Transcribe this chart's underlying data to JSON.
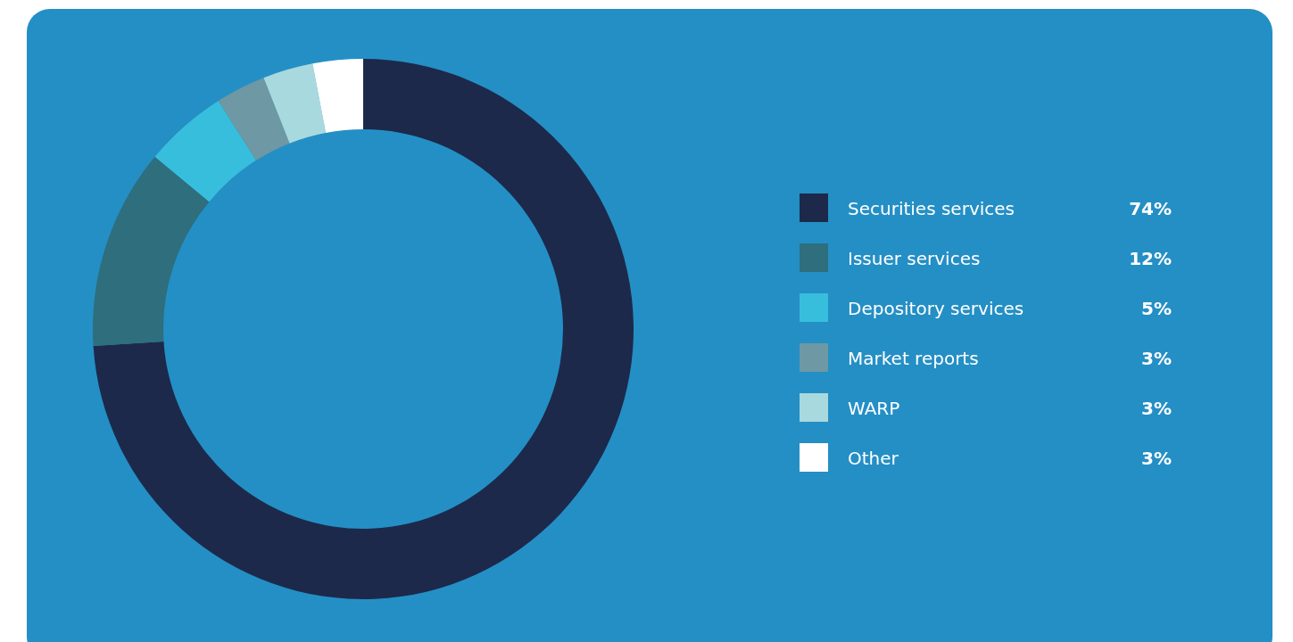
{
  "chart_data": {
    "type": "donut",
    "categories": [
      "Securities services",
      "Issuer services",
      "Depository services",
      "Market reports",
      "WARP",
      "Other"
    ],
    "values": [
      74,
      12,
      5,
      3,
      3,
      3
    ],
    "colors": [
      "#1c294b",
      "#2e6e7d",
      "#38bedd",
      "#6e98a3",
      "#a8d9de",
      "#ffffff"
    ],
    "value_labels": [
      "74%",
      "12%",
      "5%",
      "3%",
      "3%",
      "3%"
    ],
    "legend": "right"
  }
}
